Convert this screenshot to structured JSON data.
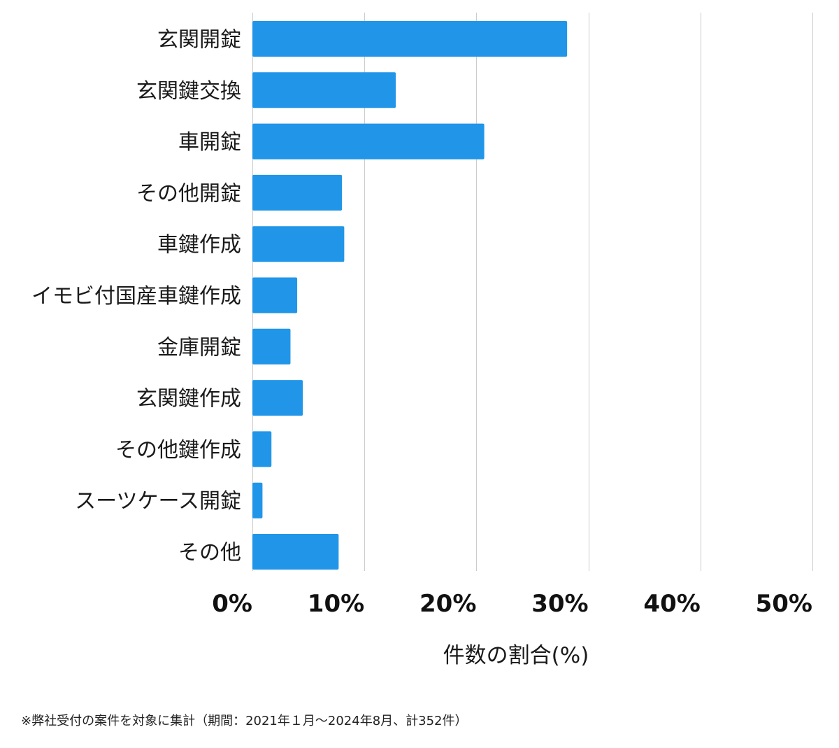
{
  "chart_data": {
    "type": "bar",
    "orientation": "horizontal",
    "categories": [
      "玄関開錠",
      "玄関鍵交換",
      "車開錠",
      "その他開錠",
      "車鍵作成",
      "イモビ付国産車鍵作成",
      "金庫開錠",
      "玄関鍵作成",
      "その他鍵作成",
      "スーツケース開錠",
      "その他"
    ],
    "values": [
      28.1,
      12.8,
      20.7,
      8.0,
      8.2,
      4.0,
      3.4,
      4.5,
      1.7,
      0.9,
      7.7
    ],
    "unit": "%",
    "xlabel": "件数の割合(%)",
    "ylabel": "",
    "title": "",
    "xlim": [
      0,
      50
    ],
    "xticks": [
      0,
      10,
      20,
      30,
      40,
      50
    ],
    "xtick_labels": [
      "0%",
      "10%",
      "20%",
      "30%",
      "40%",
      "50%"
    ],
    "grid": "vertical",
    "legend": "none",
    "bar_color": "#2196e8",
    "grid_color": "#cccccc"
  },
  "footnote": "※弊社受付の案件を対象に集計（期間：2021年１月〜2024年8月、計352件）"
}
